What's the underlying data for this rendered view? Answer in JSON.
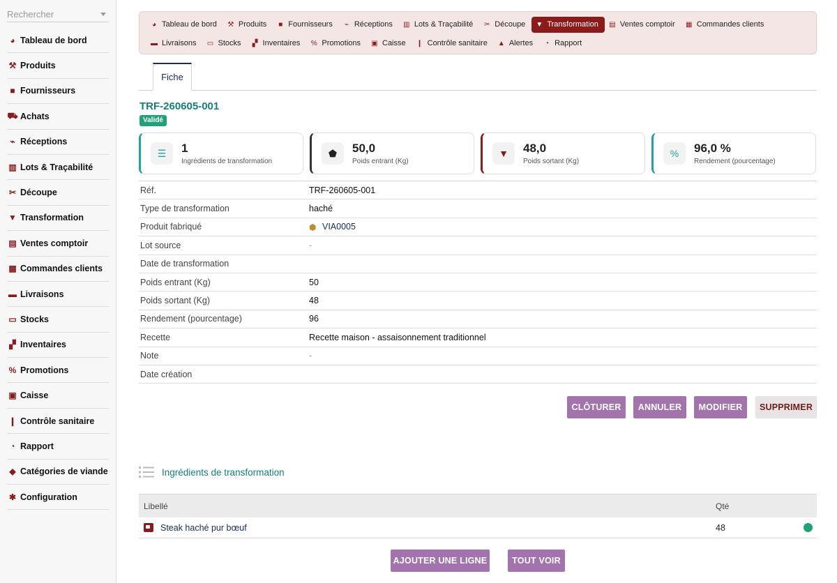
{
  "sidebar": {
    "search_placeholder": "Rechercher",
    "items": [
      {
        "label": "Tableau de bord",
        "icon": "gauge-icon",
        "glyph": "◕"
      },
      {
        "label": "Produits",
        "icon": "hammer-icon",
        "glyph": "⚒"
      },
      {
        "label": "Fournisseurs",
        "icon": "truck-icon",
        "glyph": "■"
      },
      {
        "label": "Achats",
        "icon": "cart-icon",
        "glyph": "⛟"
      },
      {
        "label": "Réceptions",
        "icon": "dolly-icon",
        "glyph": "⌁"
      },
      {
        "label": "Lots & Traçabilité",
        "icon": "barcode-icon",
        "glyph": "▥"
      },
      {
        "label": "Découpe",
        "icon": "scissors-icon",
        "glyph": "✂"
      },
      {
        "label": "Transformation",
        "icon": "blender-icon",
        "glyph": "▼"
      },
      {
        "label": "Ventes comptoir",
        "icon": "cash-register-icon",
        "glyph": "▤"
      },
      {
        "label": "Commandes clients",
        "icon": "clipboard-icon",
        "glyph": "▦"
      },
      {
        "label": "Livraisons",
        "icon": "truck-loading-icon",
        "glyph": "▬"
      },
      {
        "label": "Stocks",
        "icon": "warehouse-icon",
        "glyph": "▭"
      },
      {
        "label": "Inventaires",
        "icon": "boxes-icon",
        "glyph": "▞"
      },
      {
        "label": "Promotions",
        "icon": "percent-icon",
        "glyph": "%"
      },
      {
        "label": "Caisse",
        "icon": "money-icon",
        "glyph": "▣"
      },
      {
        "label": "Contrôle sanitaire",
        "icon": "thermometer-icon",
        "glyph": "❙"
      },
      {
        "label": "Rapport",
        "icon": "pie-chart-icon",
        "glyph": "◔"
      },
      {
        "label": "Catégories de viande",
        "icon": "tags-icon",
        "glyph": "◆"
      },
      {
        "label": "Configuration",
        "icon": "gear-icon",
        "glyph": "✱"
      }
    ]
  },
  "topnav": {
    "row1": [
      {
        "label": "Tableau de bord",
        "icon": "gauge-icon",
        "glyph": "◕",
        "active": false
      },
      {
        "label": "Produits",
        "icon": "hammer-icon",
        "glyph": "⚒",
        "active": false
      },
      {
        "label": "Fournisseurs",
        "icon": "truck-icon",
        "glyph": "■",
        "active": false
      },
      {
        "label": "Réceptions",
        "icon": "dolly-icon",
        "glyph": "⌁",
        "active": false
      },
      {
        "label": "Lots & Traçabilité",
        "icon": "barcode-icon",
        "glyph": "▥",
        "active": false
      },
      {
        "label": "Découpe",
        "icon": "scissors-icon",
        "glyph": "✂",
        "active": false
      },
      {
        "label": "Transformation",
        "icon": "blender-icon",
        "glyph": "▼",
        "active": true
      },
      {
        "label": "Ventes comptoir",
        "icon": "cash-register-icon",
        "glyph": "▤",
        "active": false
      },
      {
        "label": "Commandes clients",
        "icon": "clipboard-icon",
        "glyph": "▦",
        "active": false
      }
    ],
    "row2": [
      {
        "label": "Livraisons",
        "icon": "truck-loading-icon",
        "glyph": "▬",
        "active": false
      },
      {
        "label": "Stocks",
        "icon": "warehouse-icon",
        "glyph": "▭",
        "active": false
      },
      {
        "label": "Inventaires",
        "icon": "boxes-icon",
        "glyph": "▞",
        "active": false
      },
      {
        "label": "Promotions",
        "icon": "percent-icon",
        "glyph": "%",
        "active": false
      },
      {
        "label": "Caisse",
        "icon": "money-icon",
        "glyph": "▣",
        "active": false
      },
      {
        "label": "Contrôle sanitaire",
        "icon": "thermometer-icon",
        "glyph": "❙",
        "active": false
      },
      {
        "label": "Alertes",
        "icon": "warning-icon",
        "glyph": "▲",
        "active": false
      },
      {
        "label": "Rapport",
        "icon": "pie-chart-icon",
        "glyph": "◔",
        "active": false
      }
    ]
  },
  "tabs": {
    "fiche": "Fiche"
  },
  "record": {
    "ref": "TRF-260605-001",
    "status": "Validé"
  },
  "stats": [
    {
      "value": "1",
      "label": "Ingrédients de transformation",
      "icon": "list-icon",
      "glyph": "☰",
      "accent": "#20a3a0",
      "icon_color": "#20a3a0"
    },
    {
      "value": "50,0",
      "label": "Poids entrant (Kg)",
      "icon": "weight-icon",
      "glyph": "⬟",
      "accent": "#333333",
      "icon_color": "#222222"
    },
    {
      "value": "48,0",
      "label": "Poids sortant (Kg)",
      "icon": "blender-icon",
      "glyph": "▼",
      "accent": "#8b1a1a",
      "icon_color": "#8b1a1a"
    },
    {
      "value": "96,0 %",
      "label": "Rendement (pourcentage)",
      "icon": "percent-icon",
      "glyph": "%",
      "accent": "#20a3a0",
      "icon_color": "#20a3a0"
    }
  ],
  "details": [
    {
      "key": "Réf.",
      "value": "TRF-260605-001"
    },
    {
      "key": "Type de transformation",
      "value": "haché"
    },
    {
      "key": "Produit fabriqué",
      "value": "VIA0005",
      "link": true
    },
    {
      "key": "Lot source",
      "value": "-",
      "dash": true
    },
    {
      "key": "Date de transformation",
      "value": ""
    },
    {
      "key": "Poids entrant (Kg)",
      "value": "50"
    },
    {
      "key": "Poids sortant (Kg)",
      "value": "48"
    },
    {
      "key": "Rendement (pourcentage)",
      "value": "96"
    },
    {
      "key": "Recette",
      "value": "Recette maison - assaisonnement traditionnel"
    },
    {
      "key": "Note",
      "value": "-",
      "dash": true
    },
    {
      "key": "Date création",
      "value": ""
    }
  ],
  "actions": {
    "cloturer": "CLÔTURER",
    "annuler": "ANNULER",
    "modifier": "MODIFIER",
    "supprimer": "SUPPRIMER"
  },
  "ingredients": {
    "title": "Ingrédients de transformation",
    "col_label": "Libellé",
    "col_qty": "Qté",
    "rows": [
      {
        "label": "Steak haché pur bœuf",
        "qty": "48",
        "status_color": "#20a374"
      }
    ],
    "add_line": "AJOUTER UNE LIGNE",
    "see_all": "TOUT VOIR"
  },
  "colors": {
    "brand": "#8b1a1a",
    "accent_teal": "#157d7f",
    "button_purple": "#a273ad",
    "success": "#20a374"
  }
}
